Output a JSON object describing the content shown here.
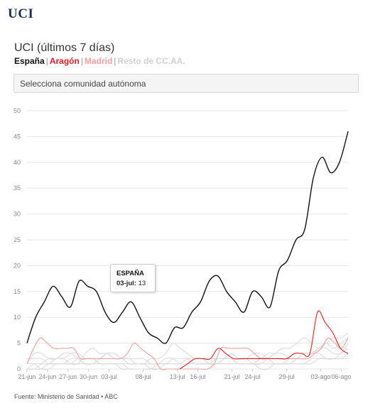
{
  "page": {
    "title": "UCI"
  },
  "chart_header": {
    "title": "UCI (últimos 7 días)",
    "legend": [
      {
        "label": "España",
        "color": "#111111"
      },
      {
        "label": "Aragón",
        "color": "#e51c23"
      },
      {
        "label": "Madrid",
        "color": "#f2a0a0"
      },
      {
        "label": "Resto de CC.AA.",
        "color": "#d0d0d0"
      }
    ],
    "separator": "|"
  },
  "selector": {
    "placeholder": "Selecciona comunidad autónoma"
  },
  "tooltip": {
    "name": "ESPAÑA",
    "date": "03-jul:",
    "value": "13"
  },
  "source": "Fuente: Ministerio de Sanidad • ABC",
  "chart_data": {
    "type": "line",
    "title": "UCI (últimos 7 días)",
    "xlabel": "",
    "ylabel": "",
    "ylim": [
      0,
      50
    ],
    "yticks": [
      0,
      5,
      10,
      15,
      20,
      25,
      30,
      35,
      40,
      45,
      50
    ],
    "grid": true,
    "x_start": "21-jun",
    "x_end": "08-ago",
    "xtick_labels": [
      "21-jun",
      "24-jun",
      "27-jun",
      "30-jun",
      "03-jul",
      "08-jul",
      "13-jul",
      "16-jul",
      "21-jul",
      "24-jul",
      "29-jul",
      "03-ago",
      "06-ago"
    ],
    "xtick_days": [
      0,
      3,
      6,
      9,
      12,
      17,
      22,
      25,
      30,
      33,
      38,
      43,
      46
    ],
    "series": [
      {
        "name": "España",
        "color": "#111111",
        "width": 1.4,
        "values": [
          5,
          10,
          13,
          16,
          14,
          12,
          17,
          16,
          15,
          11,
          9,
          11,
          13,
          10,
          7,
          6,
          5,
          8,
          8,
          11,
          13,
          17,
          18,
          15,
          13,
          11,
          15,
          14,
          12,
          19,
          21,
          25,
          27,
          37,
          41,
          38,
          40,
          46
        ]
      },
      {
        "name": "Aragón",
        "color": "#e51c23",
        "width": 1.1,
        "values": [
          null,
          null,
          null,
          null,
          null,
          null,
          null,
          null,
          null,
          null,
          null,
          null,
          null,
          null,
          null,
          null,
          null,
          null,
          null,
          null,
          0,
          1,
          2,
          2,
          2,
          4,
          3,
          2,
          2,
          2,
          2,
          2,
          2,
          2,
          2,
          3,
          3,
          3,
          11,
          9,
          7,
          4,
          3
        ]
      },
      {
        "name": "Madrid",
        "color": "#f2a0a0",
        "width": 1.1,
        "values": [
          1,
          4,
          6,
          5,
          4,
          4,
          4,
          4,
          2,
          2,
          2,
          2,
          2,
          2,
          2,
          3,
          5,
          4,
          3,
          2,
          0,
          0,
          0,
          0,
          0,
          0,
          0,
          0,
          1,
          4,
          4,
          4,
          4,
          4,
          3,
          2,
          2,
          2,
          2,
          2,
          2,
          2,
          2,
          3,
          4,
          6,
          5,
          4,
          6
        ]
      },
      {
        "name": "Resto de CC.AA.",
        "color": "#d9d9d9",
        "width": 1,
        "values": [
          1,
          3,
          3,
          2,
          2,
          3,
          3,
          2,
          1,
          1,
          2,
          3,
          2,
          2,
          1,
          1,
          1,
          2,
          2,
          3,
          5,
          4,
          3,
          2,
          2,
          1,
          1,
          2,
          3,
          2,
          2,
          1,
          1,
          2,
          3,
          4,
          4,
          5,
          6,
          5,
          4,
          5,
          6,
          6,
          7
        ]
      },
      {
        "name": "Resto de CC.AA.",
        "color": "#d9d9d9",
        "width": 1,
        "values": [
          0,
          0,
          1,
          2,
          2,
          2,
          1,
          1,
          3,
          4,
          3,
          3,
          2,
          2,
          2,
          1,
          1,
          0,
          0,
          1,
          1,
          1,
          2,
          2,
          2,
          1,
          1,
          2,
          3,
          2,
          2,
          3,
          3,
          2,
          1,
          1,
          1,
          2,
          3,
          3,
          4,
          5,
          4,
          5,
          6
        ]
      },
      {
        "name": "Resto de CC.AA.",
        "color": "#d9d9d9",
        "width": 1,
        "values": [
          2,
          2,
          2,
          1,
          1,
          1,
          1,
          2,
          2,
          2,
          2,
          3,
          3,
          2,
          2,
          2,
          2,
          1,
          1,
          1,
          1,
          1,
          1,
          2,
          2,
          2,
          2,
          2,
          2,
          2,
          2,
          2,
          2,
          3,
          3,
          3,
          2,
          2,
          2,
          3,
          4,
          4,
          3,
          3,
          4
        ]
      },
      {
        "name": "Resto de CC.AA.",
        "color": "#d9d9d9",
        "width": 1,
        "values": [
          0,
          1,
          1,
          1,
          2,
          2,
          3,
          3,
          2,
          2,
          1,
          1,
          1,
          1,
          0,
          0,
          0,
          0,
          1,
          1,
          2,
          2,
          2,
          1,
          1,
          1,
          2,
          2,
          2,
          1,
          1,
          1,
          0,
          0,
          1,
          1,
          2,
          2,
          3,
          3,
          3,
          2,
          2,
          3,
          5
        ]
      },
      {
        "name": "Resto de CC.AA.",
        "color": "#d9d9d9",
        "width": 1,
        "values": [
          1,
          1,
          0,
          0,
          1,
          1,
          2,
          2,
          2,
          2,
          1,
          1,
          1,
          1,
          1,
          1,
          1,
          1,
          1,
          2,
          2,
          1,
          1,
          1,
          1,
          1,
          1,
          1,
          1,
          1,
          1,
          1,
          2,
          2,
          1,
          1,
          1,
          1,
          1,
          1,
          2,
          2,
          2,
          2,
          3
        ]
      },
      {
        "name": "Resto de CC.AA.",
        "color": "#d9d9d9",
        "width": 1,
        "values": [
          0,
          0,
          0,
          1,
          1,
          1,
          1,
          1,
          1,
          1,
          1,
          1,
          1,
          0,
          0,
          0,
          0,
          0,
          0,
          0,
          0,
          0,
          1,
          1,
          1,
          1,
          1,
          1,
          1,
          1,
          1,
          1,
          1,
          1,
          1,
          1,
          1,
          1,
          1,
          2,
          2,
          2,
          2,
          2,
          2
        ]
      }
    ]
  }
}
